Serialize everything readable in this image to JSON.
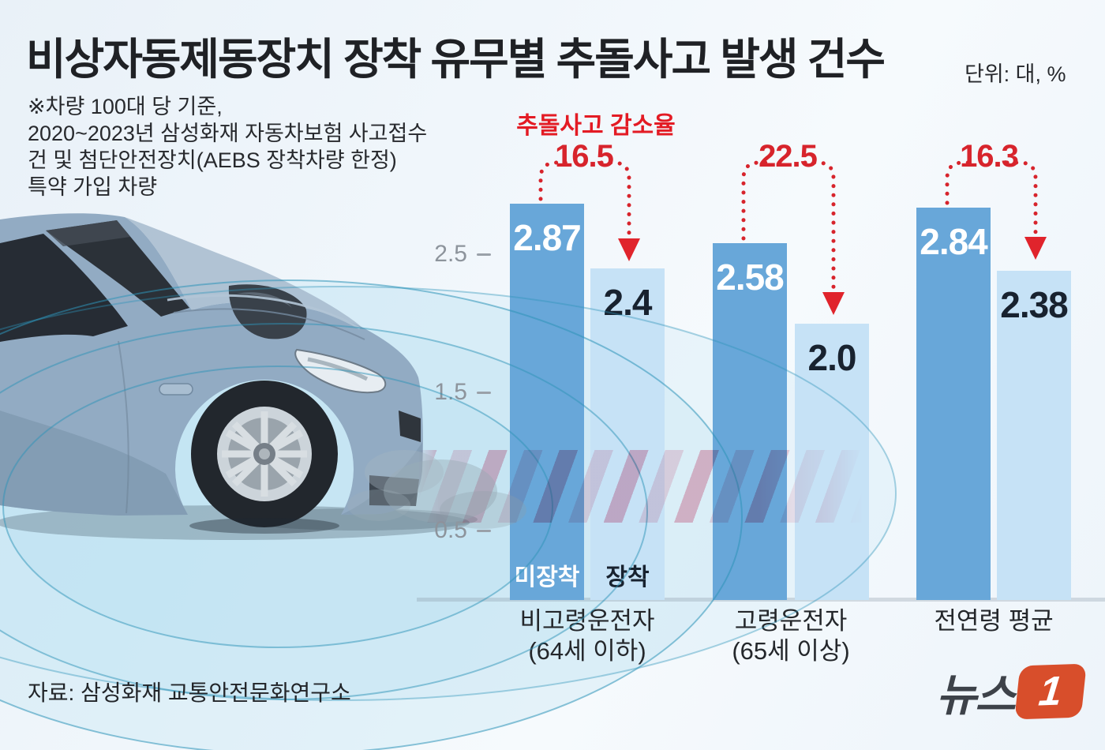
{
  "header": {
    "title": "비상자동제동장치 장착 유무별 추돌사고 발생 건수",
    "unit": "단위: 대, %"
  },
  "note": {
    "lines": [
      "※차량 100대 당 기준,",
      "2020~2023년 삼성화재 자동차보험 사고접수",
      "건 및 첨단안전장치(AEBS 장착차량 한정)",
      "특약 가입 차량"
    ]
  },
  "chart_data": {
    "type": "bar",
    "title": "비상자동제동장치 장착 유무별 추돌사고 발생 건수",
    "unit": "대, %",
    "categories": [
      "비고령운전자 (64세 이하)",
      "고령운전자 (65세 이상)",
      "전연령 평균"
    ],
    "series": [
      {
        "name": "미장착",
        "values": [
          2.87,
          2.58,
          2.84
        ],
        "color": "#68a7d9"
      },
      {
        "name": "장착",
        "values": [
          2.4,
          2.0,
          2.38
        ],
        "color": "#c6e2f6"
      }
    ],
    "reduction": {
      "label": "추돌사고 감소율",
      "values": [
        16.5,
        22.5,
        16.3
      ],
      "unit": "%"
    },
    "yticks": [
      2.5,
      1.5,
      0.5
    ],
    "ylim": [
      0,
      3
    ],
    "grid": false,
    "legend_position": "on-bars",
    "accent_red": "#d7242c"
  },
  "display": {
    "bar_values": [
      [
        "2.87",
        "2.4"
      ],
      [
        "2.58",
        "2.0"
      ],
      [
        "2.84",
        "2.38"
      ]
    ],
    "reductions": [
      "16.5",
      "22.5",
      "16.3"
    ],
    "yticks": [
      "2.5",
      "1.5",
      "0.5"
    ],
    "legend": [
      "미장착",
      "장착"
    ],
    "categories": [
      [
        "비고령운전자",
        "(64세 이하)"
      ],
      [
        "고령운전자",
        "(65세 이상)"
      ],
      [
        "전연령 평균",
        ""
      ]
    ]
  },
  "footer": {
    "source": "자료: 삼성화재 교통안전문화연구소",
    "logo_text": "뉴스",
    "logo_badge": "1"
  }
}
